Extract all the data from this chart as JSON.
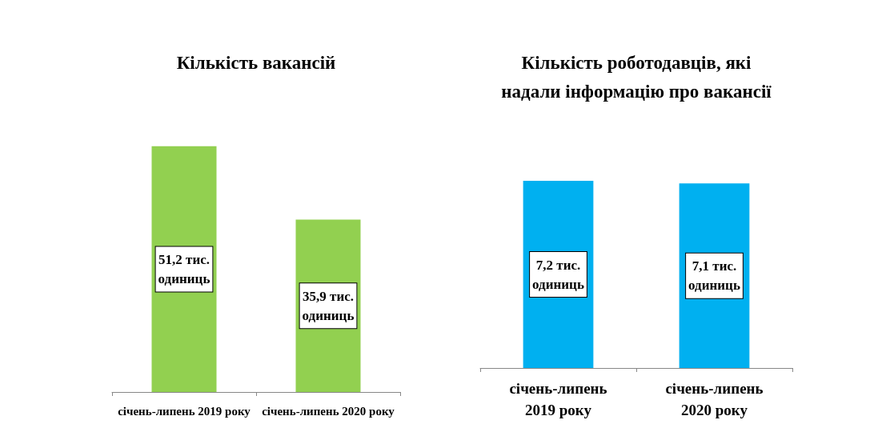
{
  "chart_data": [
    {
      "type": "bar",
      "title": "Кількість вакансій",
      "categories": [
        "січень-липень 2019 року",
        "січень-липень 2020 року"
      ],
      "values": [
        51.2,
        35.9
      ],
      "color": "#92d050",
      "value_labels": [
        "51,2 тис. одиниць",
        "35,9 тис. одиниць"
      ]
    },
    {
      "type": "bar",
      "title": "Кількість роботодавців, які надали інформацію про вакансії",
      "categories": [
        "січень-липень 2019 року",
        "січень-липень 2020 року"
      ],
      "values": [
        7.2,
        7.1
      ],
      "color": "#00b0f0",
      "value_labels": [
        "7,2 тис. одиниць",
        "7,1 тис. одиниць"
      ]
    }
  ]
}
